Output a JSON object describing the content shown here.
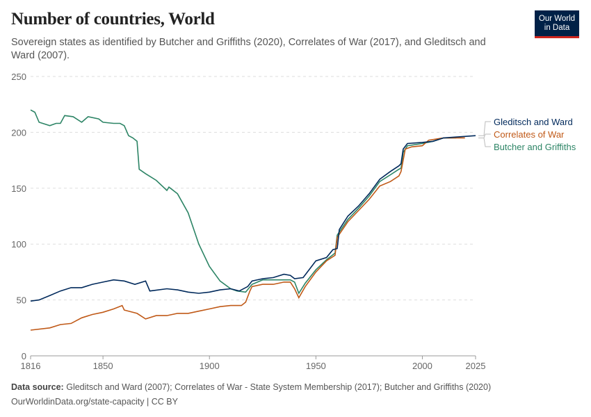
{
  "title": "Number of countries, World",
  "subtitle": "Sovereign states as identified by Butcher and Griffiths (2020), Correlates of War (2017), and Gleditsch and Ward (2007).",
  "logo": "Our World in Data",
  "footer": {
    "source_label": "Data source:",
    "source": "Gleditsch and Ward (2007); Correlates of War - State System Membership (2017); Butcher and Griffiths (2020)",
    "url": "OurWorldinData.org/state-capacity | CC BY"
  },
  "chart_data": {
    "type": "line",
    "xlim": [
      1816,
      2025
    ],
    "ylim": [
      0,
      250
    ],
    "grid": "horizontal dashed",
    "legend": "right, line-end labels",
    "x_ticks": [
      "1816",
      "1850",
      "1900",
      "1950",
      "2000",
      "2025"
    ],
    "y_ticks": [
      "0",
      "50",
      "100",
      "150",
      "200",
      "250"
    ],
    "series": [
      {
        "name": "Gleditsch and Ward",
        "color": "#00295b",
        "points": [
          [
            1816,
            49
          ],
          [
            1820,
            50
          ],
          [
            1825,
            54
          ],
          [
            1830,
            58
          ],
          [
            1835,
            61
          ],
          [
            1840,
            61
          ],
          [
            1845,
            64
          ],
          [
            1850,
            66
          ],
          [
            1855,
            68
          ],
          [
            1860,
            67
          ],
          [
            1865,
            64
          ],
          [
            1870,
            67
          ],
          [
            1872,
            58
          ],
          [
            1880,
            60
          ],
          [
            1885,
            59
          ],
          [
            1890,
            57
          ],
          [
            1895,
            56
          ],
          [
            1900,
            57
          ],
          [
            1905,
            59
          ],
          [
            1910,
            60
          ],
          [
            1914,
            58
          ],
          [
            1918,
            62
          ],
          [
            1920,
            67
          ],
          [
            1925,
            69
          ],
          [
            1930,
            70
          ],
          [
            1935,
            73
          ],
          [
            1938,
            72
          ],
          [
            1940,
            69
          ],
          [
            1944,
            70
          ],
          [
            1946,
            75
          ],
          [
            1950,
            85
          ],
          [
            1955,
            88
          ],
          [
            1958,
            95
          ],
          [
            1960,
            96
          ],
          [
            1961,
            113
          ],
          [
            1965,
            125
          ],
          [
            1970,
            134
          ],
          [
            1975,
            145
          ],
          [
            1980,
            158
          ],
          [
            1985,
            165
          ],
          [
            1989,
            170
          ],
          [
            1990,
            172
          ],
          [
            1991,
            185
          ],
          [
            1993,
            190
          ],
          [
            2000,
            191
          ],
          [
            2005,
            192
          ],
          [
            2010,
            195
          ],
          [
            2025,
            197
          ]
        ]
      },
      {
        "name": "Correlates of War",
        "color": "#c05917",
        "points": [
          [
            1816,
            23
          ],
          [
            1825,
            25
          ],
          [
            1830,
            28
          ],
          [
            1835,
            29
          ],
          [
            1840,
            34
          ],
          [
            1845,
            37
          ],
          [
            1850,
            39
          ],
          [
            1855,
            42
          ],
          [
            1859,
            45
          ],
          [
            1860,
            41
          ],
          [
            1866,
            38
          ],
          [
            1870,
            33
          ],
          [
            1875,
            36
          ],
          [
            1880,
            36
          ],
          [
            1885,
            38
          ],
          [
            1890,
            38
          ],
          [
            1895,
            40
          ],
          [
            1900,
            42
          ],
          [
            1905,
            44
          ],
          [
            1910,
            45
          ],
          [
            1915,
            45
          ],
          [
            1917,
            48
          ],
          [
            1919,
            58
          ],
          [
            1920,
            62
          ],
          [
            1925,
            64
          ],
          [
            1930,
            64
          ],
          [
            1935,
            66
          ],
          [
            1938,
            66
          ],
          [
            1940,
            60
          ],
          [
            1942,
            52
          ],
          [
            1945,
            62
          ],
          [
            1950,
            75
          ],
          [
            1955,
            85
          ],
          [
            1959,
            90
          ],
          [
            1960,
            106
          ],
          [
            1965,
            120
          ],
          [
            1970,
            130
          ],
          [
            1975,
            140
          ],
          [
            1980,
            152
          ],
          [
            1985,
            156
          ],
          [
            1989,
            161
          ],
          [
            1990,
            165
          ],
          [
            1992,
            185
          ],
          [
            1995,
            187
          ],
          [
            2000,
            188
          ],
          [
            2003,
            193
          ],
          [
            2010,
            195
          ],
          [
            2020,
            195
          ]
        ]
      },
      {
        "name": "Butcher and Griffiths",
        "color": "#2c8465",
        "points": [
          [
            1816,
            220
          ],
          [
            1818,
            218
          ],
          [
            1820,
            209
          ],
          [
            1825,
            206
          ],
          [
            1828,
            208
          ],
          [
            1830,
            208
          ],
          [
            1832,
            215
          ],
          [
            1836,
            214
          ],
          [
            1840,
            209
          ],
          [
            1843,
            214
          ],
          [
            1848,
            212
          ],
          [
            1850,
            209
          ],
          [
            1855,
            208
          ],
          [
            1858,
            208
          ],
          [
            1860,
            206
          ],
          [
            1862,
            197
          ],
          [
            1864,
            195
          ],
          [
            1866,
            192
          ],
          [
            1867,
            167
          ],
          [
            1870,
            163
          ],
          [
            1875,
            157
          ],
          [
            1880,
            148
          ],
          [
            1881,
            151
          ],
          [
            1885,
            145
          ],
          [
            1890,
            128
          ],
          [
            1895,
            100
          ],
          [
            1900,
            80
          ],
          [
            1905,
            67
          ],
          [
            1910,
            60
          ],
          [
            1913,
            58
          ],
          [
            1917,
            57
          ],
          [
            1920,
            64
          ],
          [
            1925,
            68
          ],
          [
            1930,
            68
          ],
          [
            1935,
            68
          ],
          [
            1938,
            68
          ],
          [
            1940,
            66
          ],
          [
            1942,
            56
          ],
          [
            1945,
            65
          ],
          [
            1950,
            77
          ],
          [
            1955,
            86
          ],
          [
            1959,
            92
          ],
          [
            1960,
            108
          ],
          [
            1965,
            122
          ],
          [
            1970,
            132
          ],
          [
            1975,
            143
          ],
          [
            1980,
            156
          ],
          [
            1985,
            162
          ],
          [
            1989,
            167
          ],
          [
            1990,
            168
          ],
          [
            1991,
            182
          ],
          [
            1993,
            188
          ],
          [
            2000,
            190
          ],
          [
            2005,
            192
          ],
          [
            2010,
            195
          ],
          [
            2016,
            195
          ]
        ]
      }
    ]
  }
}
